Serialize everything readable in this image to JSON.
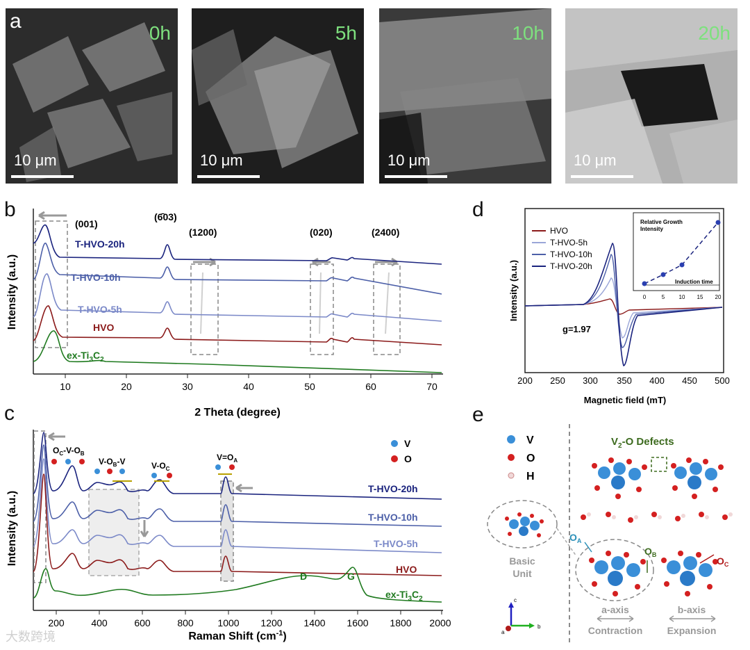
{
  "panel_a": {
    "letter": "a",
    "images": [
      {
        "time": "0h",
        "scale": "10 μm"
      },
      {
        "time": "5h",
        "scale": "10 μm"
      },
      {
        "time": "10h",
        "scale": "10 μm"
      },
      {
        "time": "20h",
        "scale": "10 μm"
      }
    ]
  },
  "panel_b": {
    "letter": "b",
    "ylabel": "Intensity (a.u.)",
    "xlabel": "2 Theta (degree)",
    "xticks": [
      "10",
      "20",
      "30",
      "40",
      "50",
      "60",
      "70"
    ],
    "peaks": [
      "(001)",
      "(6̄03)",
      "(1200)",
      "(020)",
      "(2400)"
    ],
    "series": [
      "T-HVO-20h",
      "T-HVO-10h",
      "T-HVO-5h",
      "HVO",
      "ex-Ti3C2"
    ],
    "series_sub": "3",
    "series_sub2": "2",
    "series_base": "ex-Ti",
    "series_mid": "C"
  },
  "panel_c": {
    "letter": "c",
    "ylabel": "Intensity (a.u.)",
    "xlabel": "Raman Shift (cm",
    "xlabel_sup": "-1",
    "xlabel_end": ")",
    "xticks": [
      "200",
      "400",
      "600",
      "800",
      "1000",
      "1200",
      "1400",
      "1600",
      "1800",
      "2000"
    ],
    "series": [
      "T-HVO-20h",
      "T-HVO-10h",
      "T-HVO-5h",
      "HVO"
    ],
    "legend": [
      "V",
      "O"
    ],
    "modes": [
      "O",
      "-V-O",
      "V-O",
      "-V",
      "V-O",
      "V=O"
    ],
    "bands": [
      "D",
      "G"
    ]
  },
  "panel_d": {
    "letter": "d",
    "ylabel": "Intensity (a.u.)",
    "xlabel": "Magnetic field (mT)",
    "xticks": [
      "200",
      "250",
      "300",
      "350",
      "400",
      "450",
      "500"
    ],
    "legend": [
      "HVO",
      "T-HVO-5h",
      "T-HVO-10h",
      "T-HVO-20h"
    ],
    "gvalue": "g=1.97",
    "inset": {
      "title_line1": "Relative Growth",
      "title_line2": "Intensity",
      "xlabel": "Induction time",
      "xticks": [
        "0",
        "5",
        "10",
        "15",
        "20"
      ]
    }
  },
  "panel_e": {
    "letter": "e",
    "legend": [
      "V",
      "O",
      "H"
    ],
    "defects_title": "V",
    "defects_sub": "2",
    "defects_end": "-O Defects",
    "basic_unit_1": "Basic",
    "basic_unit_2": "Unit",
    "a_axis": "a-axis",
    "a_axis_desc": "Contraction",
    "b_axis": "b-axis",
    "b_axis_desc": "Expansion",
    "oa": "O",
    "oa_sub": "A",
    "ob": "O",
    "ob_sub": "B",
    "oc": "O",
    "oc_sub": "C",
    "axis_c": "c",
    "axis_a": "a",
    "axis_b": "b"
  },
  "colors": {
    "hvo": "#8b1a1a",
    "t5": "#7b89c8",
    "t10": "#4c5fa8",
    "t20": "#1a237e",
    "ti3c2": "#1f7a1f",
    "v_atom": "#3a8fd8",
    "o_atom": "#d42020"
  },
  "watermark": "大数跨境"
}
